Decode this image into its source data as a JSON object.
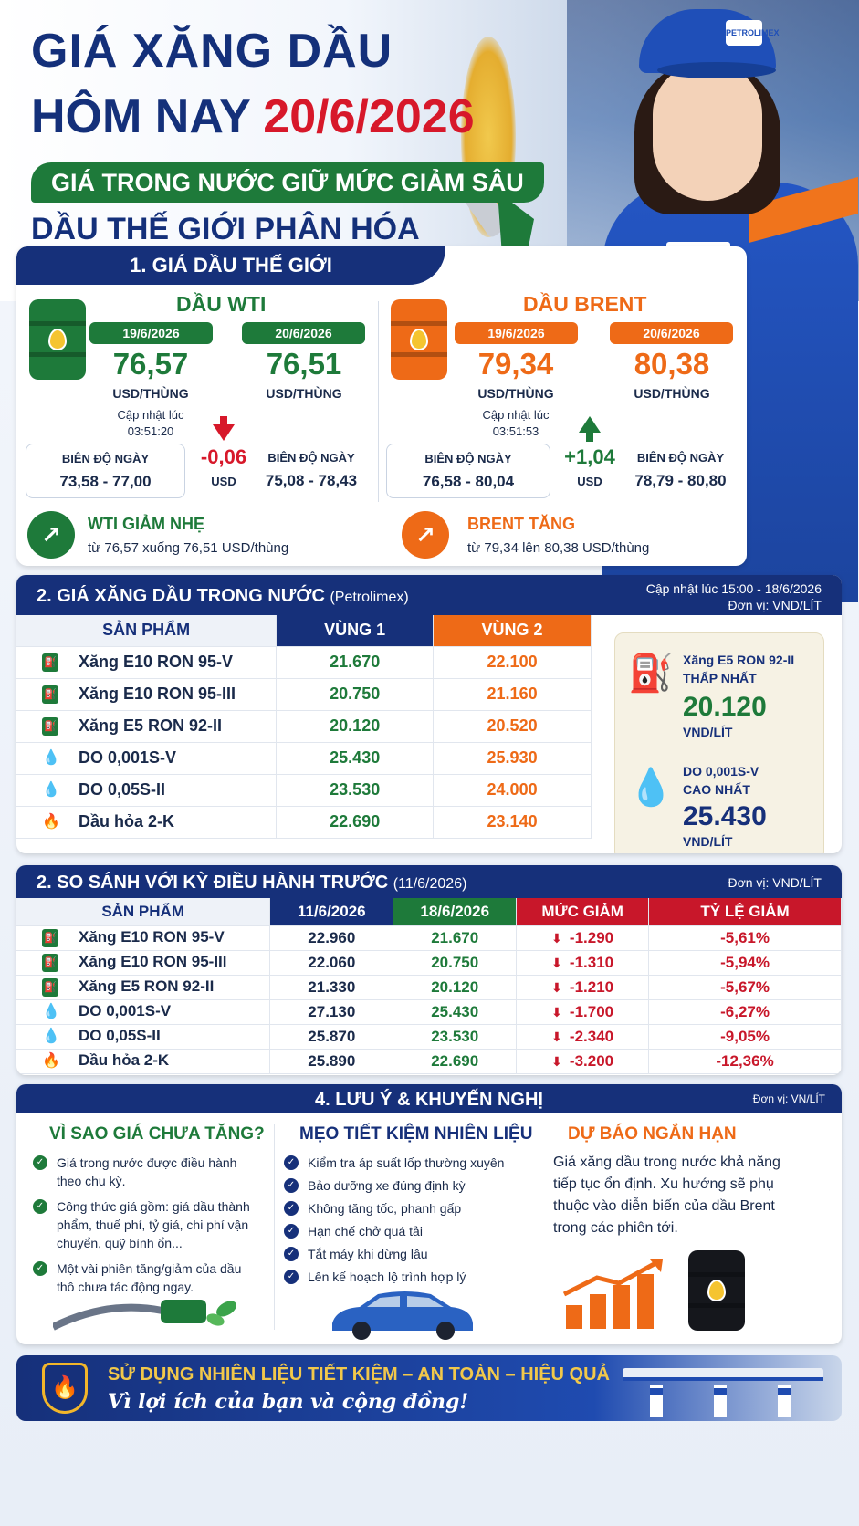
{
  "header": {
    "title_line1": "GIÁ XĂNG DẦU",
    "title_line2_prefix": "HÔM NAY",
    "title_date": "20/6/2026",
    "subtitle_pill": "GIÁ TRONG NƯỚC GIỮ MỨC GIẢM SÂU",
    "subtitle2": "DẦU THẾ GIỚI PHÂN HÓA",
    "brand_logo_text": "PETROLIMEX"
  },
  "world": {
    "section_title": "1. GIÁ DẦU THẾ GIỚI",
    "wti": {
      "name": "DẦU WTI",
      "date_prev": "19/6/2026",
      "date_curr": "20/6/2026",
      "price_prev": "76,57",
      "price_curr": "76,51",
      "unit": "USD/THÙNG",
      "updated_label": "Cập nhật lúc",
      "updated_time": "03:51:20",
      "range_label": "BIÊN ĐỘ NGÀY",
      "range_prev": "73,58 - 77,00",
      "range_curr": "75,08 - 78,43",
      "change": "-0,06",
      "change_unit": "USD",
      "trend_title": "WTI GIẢM NHẸ",
      "trend_desc": "từ 76,57 xuống 76,51 USD/thùng"
    },
    "brent": {
      "name": "DẦU BRENT",
      "date_prev": "19/6/2026",
      "date_curr": "20/6/2026",
      "price_prev": "79,34",
      "price_curr": "80,38",
      "unit": "USD/THÙNG",
      "updated_label": "Cập nhật lúc",
      "updated_time": "03:51:53",
      "range_label": "BIÊN ĐỘ NGÀY",
      "range_prev": "76,58 - 80,04",
      "range_curr": "78,79 - 80,80",
      "change": "+1,04",
      "change_unit": "USD",
      "trend_title": "BRENT TĂNG",
      "trend_desc": "từ 79,34 lên 80,38 USD/thùng"
    }
  },
  "domestic": {
    "section_title": "2. GIÁ XĂNG DẦU TRONG NƯỚC",
    "section_paren": "(Petrolimex)",
    "updated": "Cập nhật lúc 15:00 - 18/6/2026",
    "unit_note": "Đơn vị: VND/LÍT",
    "col_product": "SẢN PHẨM",
    "col_v1": "VÙNG 1",
    "col_v2": "VÙNG 2",
    "rows": [
      {
        "name": "Xăng E10 RON 95-V",
        "v1": "21.670",
        "v2": "22.100",
        "icon": "pump-icon"
      },
      {
        "name": "Xăng E10 RON 95-III",
        "v1": "20.750",
        "v2": "21.160",
        "icon": "pump-icon"
      },
      {
        "name": "Xăng E5 RON 92-II",
        "v1": "20.120",
        "v2": "20.520",
        "icon": "pump-icon"
      },
      {
        "name": "DO 0,001S-V",
        "v1": "25.430",
        "v2": "25.930",
        "icon": "drop-icon"
      },
      {
        "name": "DO 0,05S-II",
        "v1": "23.530",
        "v2": "24.000",
        "icon": "drop-icon"
      },
      {
        "name": "Dầu hỏa 2-K",
        "v1": "22.690",
        "v2": "23.140",
        "icon": "flame-icon"
      }
    ],
    "lowest": {
      "name": "Xăng E5 RON 92-II",
      "tag": "THẤP NHẤT",
      "price": "20.120",
      "unit": "VND/LÍT"
    },
    "highest": {
      "name": "DO 0,001S-V",
      "tag": "CAO NHẤT",
      "price": "25.430",
      "unit": "VND/LÍT"
    }
  },
  "compare": {
    "section_title": "2. SO SÁNH VỚI KỲ ĐIỀU HÀNH TRƯỚC",
    "section_paren": "(11/6/2026)",
    "unit_note": "Đơn vị: VND/LÍT",
    "col_product": "SẢN PHẨM",
    "col_old": "11/6/2026",
    "col_new": "18/6/2026",
    "col_diff": "MỨC GIẢM",
    "col_pct": "TỶ LỆ GIẢM",
    "rows": [
      {
        "name": "Xăng E10 RON 95-V",
        "old": "22.960",
        "new": "21.670",
        "diff": "-1.290",
        "pct": "-5,61%"
      },
      {
        "name": "Xăng E10 RON 95-III",
        "old": "22.060",
        "new": "20.750",
        "diff": "-1.310",
        "pct": "-5,94%"
      },
      {
        "name": "Xăng E5 RON 92-II",
        "old": "21.330",
        "new": "20.120",
        "diff": "-1.210",
        "pct": "-5,67%"
      },
      {
        "name": "DO 0,001S-V",
        "old": "27.130",
        "new": "25.430",
        "diff": "-1.700",
        "pct": "-6,27%"
      },
      {
        "name": "DO 0,05S-II",
        "old": "25.870",
        "new": "23.530",
        "diff": "-2.340",
        "pct": "-9,05%"
      },
      {
        "name": "Dầu hỏa 2-K",
        "old": "25.890",
        "new": "22.690",
        "diff": "-3.200",
        "pct": "-12,36%"
      }
    ]
  },
  "notes": {
    "section_title": "4. LƯU Ý & KHUYẾN NGHỊ",
    "unit_note": "Đơn vị: VN/LÍT",
    "why": {
      "title": "VÌ SAO GIÁ CHƯA TĂNG?",
      "items": [
        "Giá trong nước được điều hành theo chu kỳ.",
        "Công thức giá gồm: giá dầu thành phẩm, thuế phí, tỷ giá, chi phí vận chuyển, quỹ bình ổn...",
        "Một vài phiên tăng/giảm của dầu thô chưa tác động ngay."
      ]
    },
    "tips": {
      "title": "MẸO TIẾT KIỆM NHIÊN LIỆU",
      "items": [
        "Kiểm tra áp suất lốp thường xuyên",
        "Bảo dưỡng xe đúng định kỳ",
        "Không tăng tốc, phanh gấp",
        "Hạn chế chở quá tải",
        "Tắt máy khi dừng lâu",
        "Lên kế hoạch lộ trình hợp lý"
      ]
    },
    "forecast": {
      "title": "DỰ BÁO NGẮN HẠN",
      "text": "Giá xăng dầu trong nước khả năng tiếp tục ổn định. Xu hướng sẽ phụ thuộc vào diễn biến của dầu Brent trong các phiên tới."
    }
  },
  "footer": {
    "line1": "SỬ DỤNG NHIÊN LIỆU TIẾT KIỆM – AN TOÀN – HIỆU QUẢ",
    "line2": "Vì lợi ích của bạn và cộng đồng!"
  },
  "colors": {
    "navy": "#16307a",
    "green": "#1e7a3a",
    "orange": "#ee6a17",
    "red": "#d7182a"
  }
}
